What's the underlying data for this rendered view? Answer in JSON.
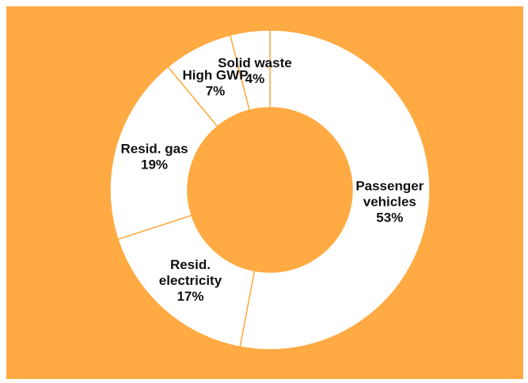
{
  "colors": {
    "background": "#FFAA42",
    "slice_fill": "#FFFFFF",
    "slice_border": "#FFAA42",
    "label_text": "#111111"
  },
  "chart_data": {
    "type": "pie",
    "variant": "donut",
    "title": "",
    "start": "12 o'clock",
    "direction": "clockwise",
    "legend": "none",
    "slices": [
      {
        "name": "Passenger vehicles",
        "label_lines": [
          "Passenger",
          "vehicles"
        ],
        "value": 53,
        "value_label": "53%"
      },
      {
        "name": "Resid. electricity",
        "label_lines": [
          "Resid.",
          "electricity"
        ],
        "value": 17,
        "value_label": "17%"
      },
      {
        "name": "Resid. gas",
        "label_lines": [
          "Resid. gas"
        ],
        "value": 19,
        "value_label": "19%"
      },
      {
        "name": "High GWP",
        "label_lines": [
          "High GWP"
        ],
        "value": 7,
        "value_label": "7%"
      },
      {
        "name": "Solid waste",
        "label_lines": [
          "Solid waste"
        ],
        "value": 4,
        "value_label": "4%"
      }
    ]
  }
}
